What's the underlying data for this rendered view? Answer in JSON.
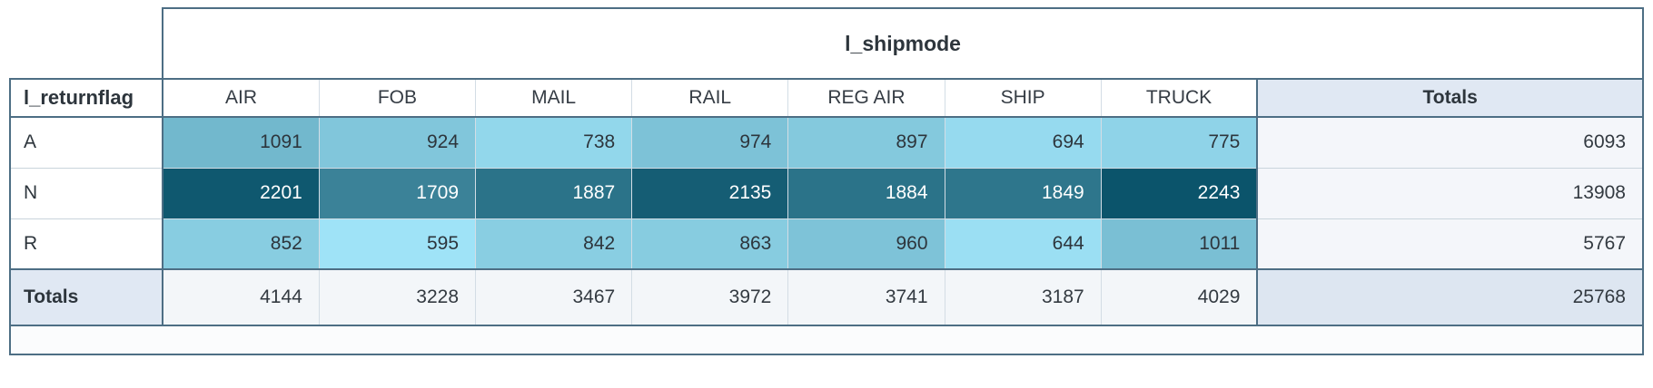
{
  "chart_data": {
    "type": "table",
    "subtype": "pivot-heatmap",
    "column_field": "l_shipmode",
    "row_field": "l_returnflag",
    "columns": [
      "AIR",
      "FOB",
      "MAIL",
      "RAIL",
      "REG AIR",
      "SHIP",
      "TRUCK"
    ],
    "totals_label": "Totals",
    "rows": [
      {
        "label": "A",
        "values": [
          1091,
          924,
          738,
          974,
          897,
          694,
          775
        ],
        "total": 6093
      },
      {
        "label": "N",
        "values": [
          2201,
          1709,
          1887,
          2135,
          1884,
          1849,
          2243
        ],
        "total": 13908
      },
      {
        "label": "R",
        "values": [
          852,
          595,
          842,
          863,
          960,
          644,
          1011
        ],
        "total": 5767
      }
    ],
    "column_totals": [
      4144,
      3228,
      3467,
      3972,
      3741,
      3187,
      4029
    ],
    "grand_total": 25768,
    "heatmap": {
      "min_value": 595,
      "max_value": 2243,
      "min_color": "#9fe3f7",
      "max_color": "#0b546b",
      "text_switch_threshold": 0.5,
      "light_text": "#ffffff",
      "dark_text": "#2d353c"
    }
  },
  "theme": {
    "border_dark": "#4d6e84",
    "border_light": "#d3dde5",
    "row_divider": "#c9d4dc",
    "totals_header_bg": "#e0e8f3",
    "row_total_bg": "#f4f6fa",
    "totals_row_bg": "#f3f6f9",
    "grand_total_bg": "#dde6f1",
    "footer_bg": "#fbfcfd",
    "header_text": "#2d353c",
    "value_text": "#333a41"
  }
}
